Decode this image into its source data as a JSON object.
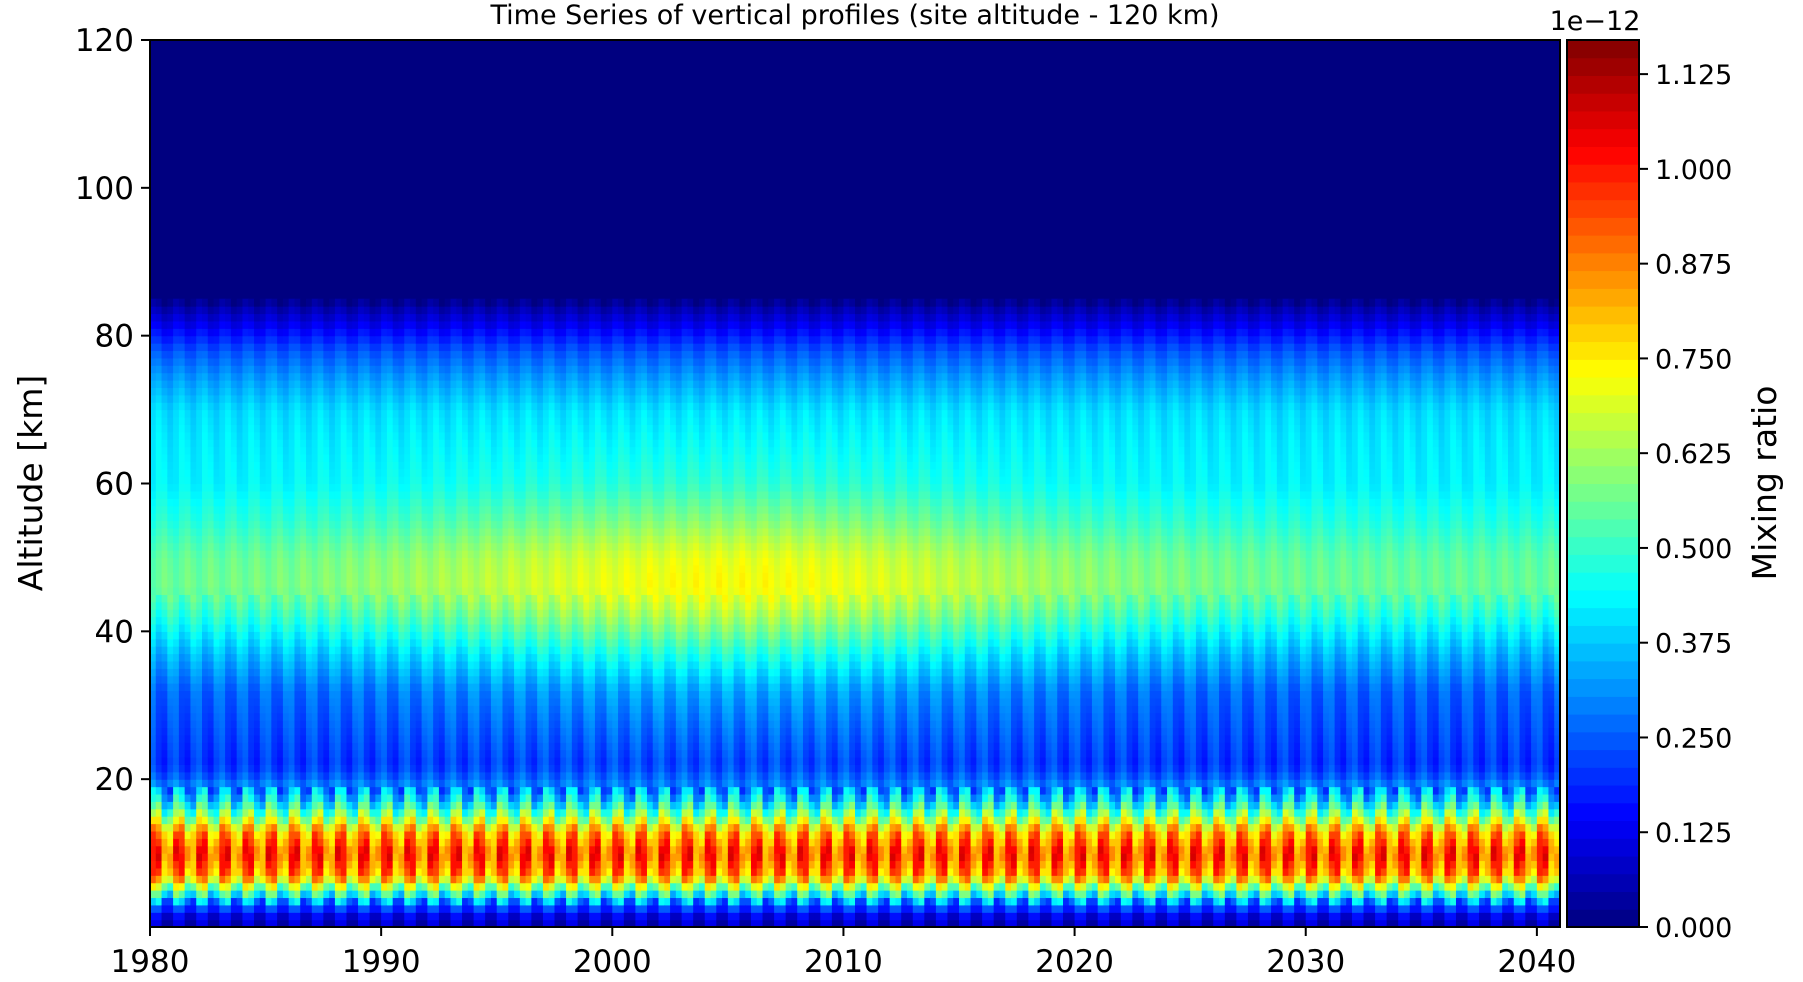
{
  "chart_data": {
    "type": "heatmap",
    "title": "Time Series of vertical profiles (site altitude - 120 km)",
    "xlabel": "",
    "ylabel": "Altitude [km]",
    "xlim": [
      1980,
      2041
    ],
    "ylim": [
      0,
      120
    ],
    "x_ticks": [
      "1980",
      "1990",
      "2000",
      "2010",
      "2020",
      "2030",
      "2040"
    ],
    "y_ticks": [
      "20",
      "40",
      "60",
      "80",
      "100",
      "120"
    ],
    "colorbar": {
      "label": "Mixing ratio",
      "offset_text": "1e−12",
      "colormap": "jet",
      "range": [
        0,
        1.17e-12
      ],
      "ticks": [
        "0.000",
        "0.125",
        "0.250",
        "0.375",
        "0.500",
        "0.625",
        "0.750",
        "0.875",
        "1.000",
        "1.125"
      ],
      "levels": 50
    },
    "grid": false,
    "field_summary": [
      {
        "altitude_km": [
          85,
          120
        ],
        "mixing_ratio": 0.0
      },
      {
        "altitude_km": [
          76,
          85
        ],
        "mixing_ratio": [
          0.05,
          0.25
        ],
        "note": "sharp top boundary at ~85 km"
      },
      {
        "altitude_km": [
          55,
          76
        ],
        "mixing_ratio": [
          0.3,
          0.5
        ]
      },
      {
        "altitude_km": [
          40,
          55
        ],
        "mixing_ratio": [
          0.45,
          0.72
        ],
        "peak_year": 2005
      },
      {
        "altitude_km": [
          20,
          40
        ],
        "mixing_ratio": [
          0.2,
          0.45
        ]
      },
      {
        "altitude_km": [
          5,
          18
        ],
        "mixing_ratio": [
          0.6,
          1.15
        ],
        "note": "annual cycle maxima"
      },
      {
        "altitude_km": [
          0,
          4
        ],
        "mixing_ratio": [
          0.05,
          0.3
        ]
      }
    ]
  }
}
